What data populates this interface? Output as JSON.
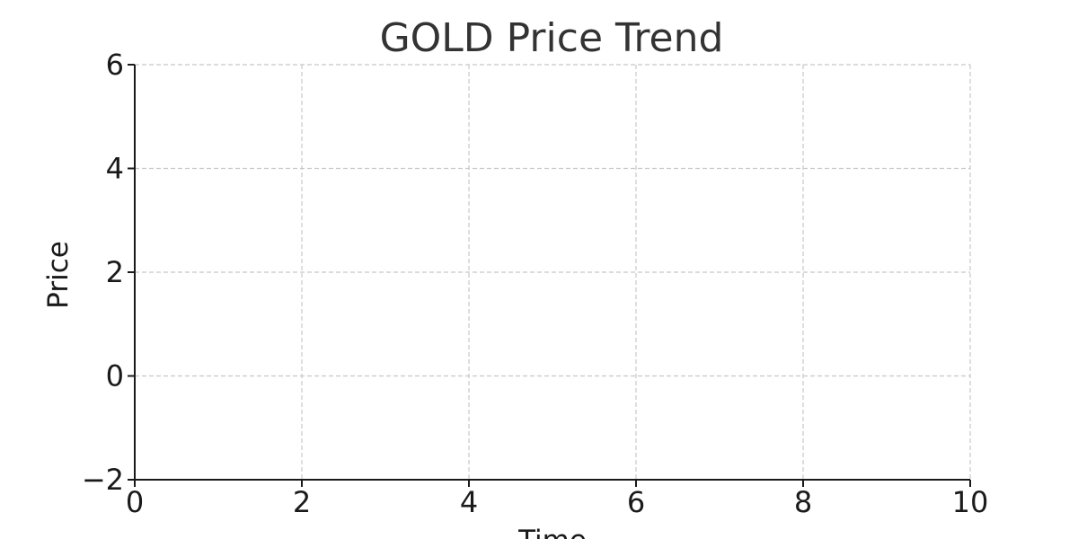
{
  "chart_data": {
    "type": "line",
    "title": "GOLD Price Trend",
    "xlabel": "Time",
    "ylabel": "Price",
    "xlim": [
      0,
      10
    ],
    "ylim": [
      -2,
      6
    ],
    "x_ticks": [
      0,
      2,
      4,
      6,
      8,
      10
    ],
    "x_tick_labels": [
      "0",
      "2",
      "4",
      "6",
      "8",
      "10"
    ],
    "y_ticks": [
      -2,
      0,
      2,
      4,
      6
    ],
    "y_tick_labels": [
      "−2",
      "0",
      "2",
      "4",
      "6"
    ],
    "grid": true,
    "series": []
  },
  "colors": {
    "grid": "#c8c8c8",
    "axis": "#1a1a1a",
    "title": "#333333"
  }
}
